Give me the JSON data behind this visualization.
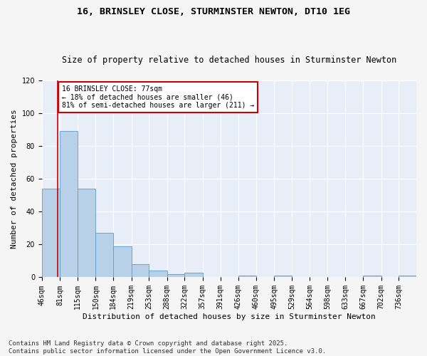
{
  "title": "16, BRINSLEY CLOSE, STURMINSTER NEWTON, DT10 1EG",
  "subtitle": "Size of property relative to detached houses in Sturminster Newton",
  "xlabel": "Distribution of detached houses by size in Sturminster Newton",
  "ylabel": "Number of detached properties",
  "bin_labels": [
    "46sqm",
    "81sqm",
    "115sqm",
    "150sqm",
    "184sqm",
    "219sqm",
    "253sqm",
    "288sqm",
    "322sqm",
    "357sqm",
    "391sqm",
    "426sqm",
    "460sqm",
    "495sqm",
    "529sqm",
    "564sqm",
    "598sqm",
    "633sqm",
    "667sqm",
    "702sqm",
    "736sqm"
  ],
  "hist_values": [
    54,
    89,
    54,
    27,
    19,
    8,
    4,
    2,
    3,
    0,
    0,
    1,
    0,
    1,
    0,
    0,
    0,
    0,
    1,
    0,
    1
  ],
  "bin_edges": [
    46,
    81,
    115,
    150,
    184,
    219,
    253,
    288,
    322,
    357,
    391,
    426,
    460,
    495,
    529,
    564,
    598,
    633,
    667,
    702,
    736,
    770
  ],
  "bar_color": "#b8d0e8",
  "bar_edge_color": "#5b9bd5",
  "vline_x": 77,
  "vline_color": "#cc0000",
  "annotation_text": "16 BRINSLEY CLOSE: 77sqm\n← 18% of detached houses are smaller (46)\n81% of semi-detached houses are larger (211) →",
  "annotation_box_color": "#ffffff",
  "annotation_box_edge": "#cc0000",
  "ylim": [
    0,
    120
  ],
  "yticks": [
    0,
    20,
    40,
    60,
    80,
    100,
    120
  ],
  "bg_color": "#e8eef8",
  "fig_bg_color": "#f5f5f5",
  "footer": "Contains HM Land Registry data © Crown copyright and database right 2025.\nContains public sector information licensed under the Open Government Licence v3.0.",
  "title_fontsize": 9.5,
  "subtitle_fontsize": 8.5,
  "xlabel_fontsize": 8,
  "ylabel_fontsize": 8,
  "tick_fontsize": 7,
  "annotation_fontsize": 7,
  "footer_fontsize": 6.5
}
